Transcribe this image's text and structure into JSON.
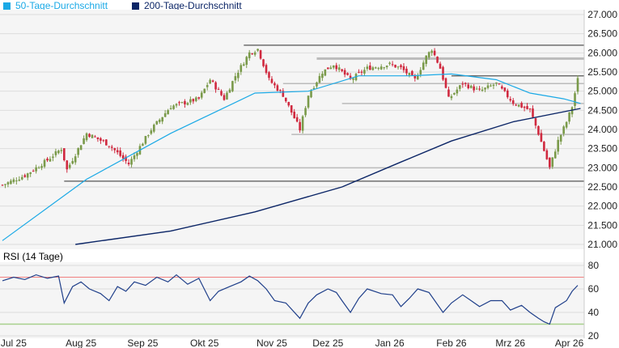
{
  "legend": {
    "sma50": "50-Tage-Durchschnitt",
    "sma200": "200-Tage-Durchschnitt"
  },
  "colors": {
    "sma50": "#1aa9e6",
    "sma200": "#0b2566",
    "up": "#7a9a4a",
    "down": "#d0293f",
    "rsi": "#1f3f8a",
    "rsi_upper": "#f08080",
    "rsi_lower": "#a8d08d"
  },
  "chart_data": [
    {
      "type": "candlestick",
      "title": "",
      "ylim": [
        21000,
        27000
      ],
      "yticks": [
        "27.000",
        "26.500",
        "26.000",
        "25.500",
        "25.000",
        "24.500",
        "24.000",
        "23.500",
        "23.000",
        "22.500",
        "22.000",
        "21.500",
        "21.000"
      ],
      "ytick_values": [
        27000,
        26500,
        26000,
        25500,
        25000,
        24500,
        24000,
        23500,
        23000,
        22500,
        22000,
        21500,
        21000
      ],
      "days": 205,
      "close_keypoints": [
        [
          0,
          22550
        ],
        [
          8,
          22800
        ],
        [
          16,
          23200
        ],
        [
          21,
          23500
        ],
        [
          23,
          22950
        ],
        [
          30,
          23900
        ],
        [
          38,
          23600
        ],
        [
          45,
          23100
        ],
        [
          53,
          24000
        ],
        [
          60,
          24600
        ],
        [
          70,
          24800
        ],
        [
          74,
          25300
        ],
        [
          79,
          24800
        ],
        [
          83,
          25400
        ],
        [
          88,
          26000
        ],
        [
          91,
          26100
        ],
        [
          95,
          25300
        ],
        [
          100,
          24900
        ],
        [
          106,
          24000
        ],
        [
          109,
          24900
        ],
        [
          114,
          25500
        ],
        [
          118,
          25700
        ],
        [
          124,
          25300
        ],
        [
          130,
          25600
        ],
        [
          138,
          25700
        ],
        [
          142,
          25600
        ],
        [
          147,
          25300
        ],
        [
          151,
          25900
        ],
        [
          153,
          26100
        ],
        [
          156,
          25600
        ],
        [
          159,
          24800
        ],
        [
          164,
          25200
        ],
        [
          170,
          25000
        ],
        [
          176,
          25200
        ],
        [
          182,
          24700
        ],
        [
          188,
          24500
        ],
        [
          191,
          23900
        ],
        [
          195,
          23000
        ],
        [
          198,
          23700
        ],
        [
          201,
          24200
        ],
        [
          203,
          24600
        ],
        [
          205,
          25300
        ]
      ],
      "sma50": [
        [
          0,
          21100
        ],
        [
          30,
          22700
        ],
        [
          60,
          23900
        ],
        [
          90,
          24950
        ],
        [
          109,
          25000
        ],
        [
          127,
          25400
        ],
        [
          145,
          25400
        ],
        [
          160,
          25450
        ],
        [
          176,
          25300
        ],
        [
          188,
          24950
        ],
        [
          200,
          24800
        ],
        [
          206,
          24680
        ]
      ],
      "sma200": [
        [
          26,
          21000
        ],
        [
          60,
          21350
        ],
        [
          90,
          21850
        ],
        [
          121,
          22500
        ],
        [
          142,
          23150
        ],
        [
          160,
          23700
        ],
        [
          182,
          24200
        ],
        [
          206,
          24550
        ]
      ],
      "levels": [
        {
          "v": 26200,
          "from": 86,
          "dark": true
        },
        {
          "v": 25850,
          "from": 112,
          "dark": false
        },
        {
          "v": 25400,
          "from": 160,
          "dark": true
        },
        {
          "v": 25200,
          "from": 100,
          "dark": false
        },
        {
          "v": 24680,
          "from": 121,
          "dark": false
        },
        {
          "v": 23870,
          "from": 103,
          "dark": false
        },
        {
          "v": 23000,
          "from": 45,
          "dark": false
        },
        {
          "v": 22650,
          "from": 22,
          "dark": true
        }
      ]
    },
    {
      "type": "line",
      "title": "RSI (14 Tage)",
      "ylim": [
        20,
        80
      ],
      "yticks": [
        "80",
        "60",
        "40",
        "20"
      ],
      "ytick_values": [
        80,
        60,
        40,
        20
      ],
      "upper": 70,
      "lower": 30,
      "values": [
        [
          0,
          67
        ],
        [
          4,
          70
        ],
        [
          8,
          68
        ],
        [
          12,
          72
        ],
        [
          16,
          69
        ],
        [
          20,
          71
        ],
        [
          22,
          48
        ],
        [
          25,
          62
        ],
        [
          28,
          66
        ],
        [
          31,
          60
        ],
        [
          35,
          56
        ],
        [
          38,
          50
        ],
        [
          41,
          62
        ],
        [
          44,
          58
        ],
        [
          47,
          66
        ],
        [
          51,
          63
        ],
        [
          55,
          70
        ],
        [
          59,
          66
        ],
        [
          62,
          72
        ],
        [
          66,
          64
        ],
        [
          70,
          69
        ],
        [
          74,
          50
        ],
        [
          77,
          58
        ],
        [
          81,
          62
        ],
        [
          85,
          66
        ],
        [
          88,
          71
        ],
        [
          91,
          67
        ],
        [
          94,
          60
        ],
        [
          97,
          50
        ],
        [
          101,
          48
        ],
        [
          106,
          35
        ],
        [
          109,
          48
        ],
        [
          112,
          55
        ],
        [
          116,
          60
        ],
        [
          119,
          57
        ],
        [
          121,
          50
        ],
        [
          124,
          40
        ],
        [
          127,
          52
        ],
        [
          130,
          60
        ],
        [
          135,
          56
        ],
        [
          139,
          55
        ],
        [
          142,
          45
        ],
        [
          145,
          52
        ],
        [
          148,
          60
        ],
        [
          152,
          57
        ],
        [
          157,
          40
        ],
        [
          160,
          48
        ],
        [
          164,
          55
        ],
        [
          167,
          50
        ],
        [
          170,
          45
        ],
        [
          174,
          50
        ],
        [
          178,
          50
        ],
        [
          181,
          42
        ],
        [
          185,
          46
        ],
        [
          188,
          40
        ],
        [
          191,
          35
        ],
        [
          193,
          32
        ],
        [
          195,
          30
        ],
        [
          197,
          44
        ],
        [
          199,
          47
        ],
        [
          201,
          50
        ],
        [
          203,
          58
        ],
        [
          205,
          63
        ]
      ],
      "xticks": [
        "Jul 25",
        "Aug 25",
        "Sep 25",
        "Okt 25",
        "Nov 25",
        "Dez 25",
        "Jan 26",
        "Feb 26",
        "Mrz 26",
        "Apr 26"
      ],
      "xtick_days": [
        4,
        28,
        50,
        72,
        96,
        116,
        138,
        160,
        181,
        202
      ]
    }
  ]
}
